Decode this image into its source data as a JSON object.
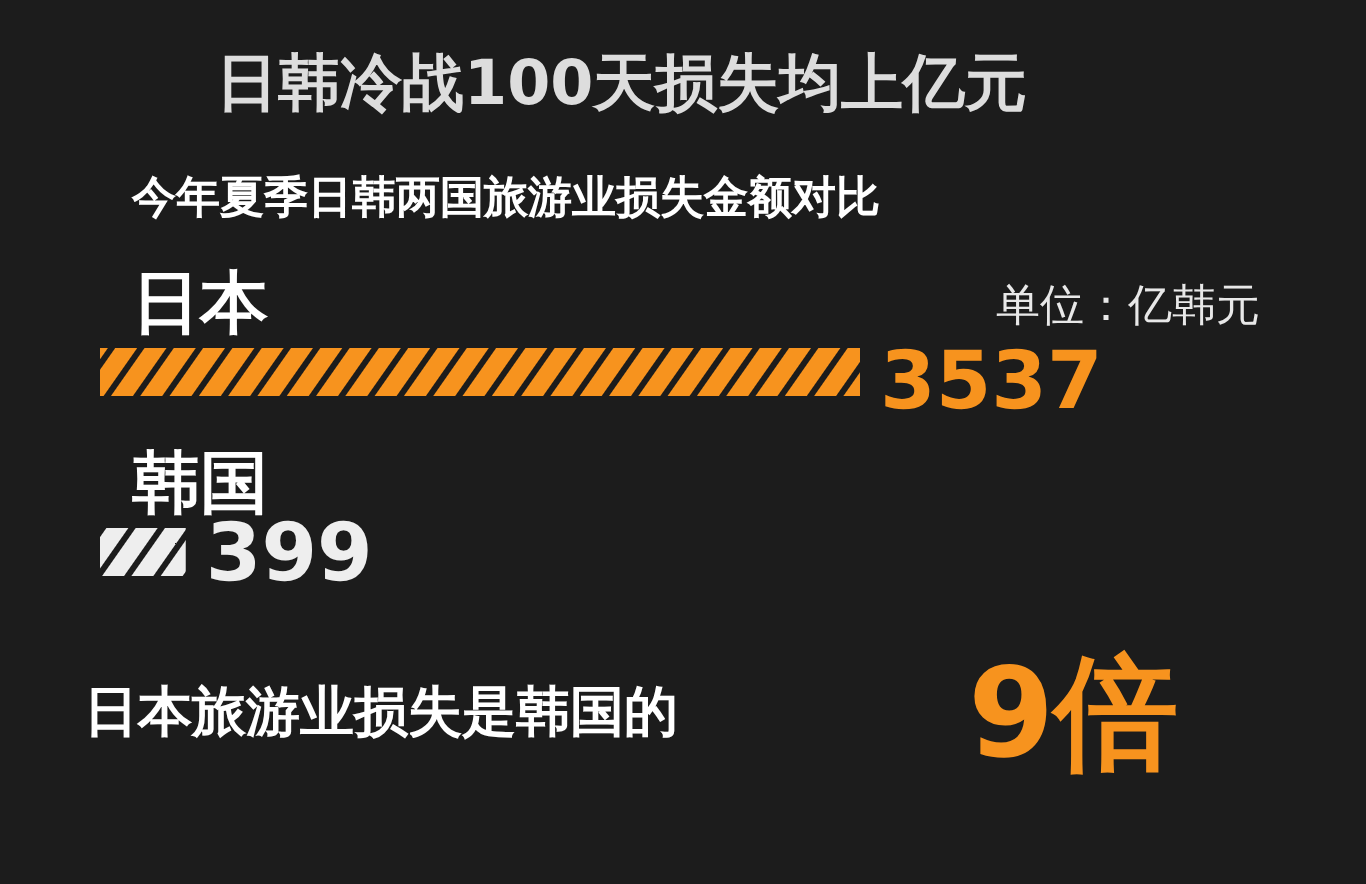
{
  "chart_data": {
    "type": "bar",
    "orientation": "horizontal",
    "title": "日韩冷战100天损失均上亿元",
    "subtitle": "今年夏季日韩两国旅游业损失金额对比",
    "categories": [
      "日本",
      "韩国"
    ],
    "values": [
      3537,
      399
    ],
    "colors": [
      "#f7931e",
      "#eeeeee"
    ],
    "data_labels": true,
    "annotations": [
      "单位：亿韩元",
      "日本旅游业损失是韩国的",
      "9倍"
    ]
  }
}
